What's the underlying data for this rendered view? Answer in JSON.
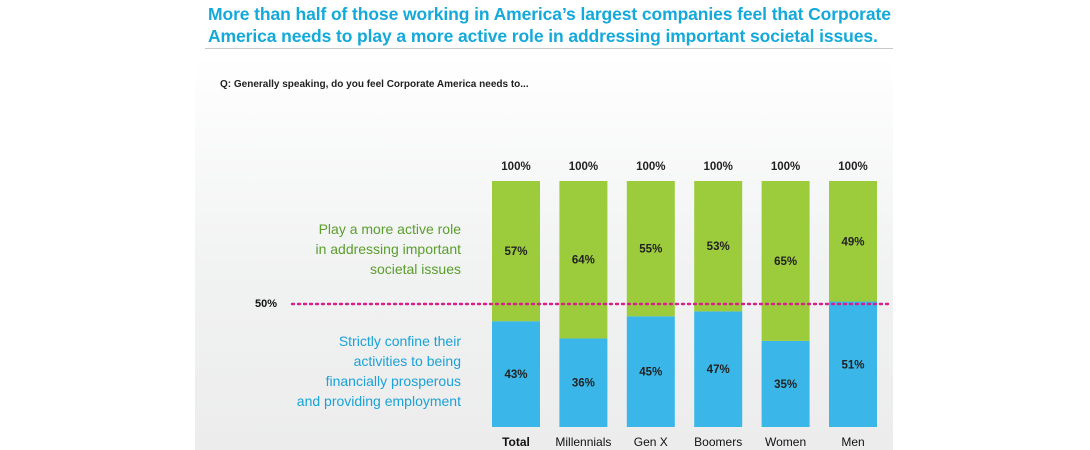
{
  "headline": {
    "line1": "More than half of those working in America’s largest companies feel that Corporate",
    "line2": "America needs to play a more active role in addressing important societal issues."
  },
  "question": "Q: Generally speaking, do you feel Corporate America needs to...",
  "reference_label": "50%",
  "legend": {
    "active": {
      "lines": [
        "Play a more active role",
        "in addressing important",
        "societal issues"
      ],
      "color": "#9ccb3c"
    },
    "confine": {
      "lines": [
        "Strictly confine their",
        "activities to being",
        "financially prosperous",
        "and providing employment"
      ],
      "color": "#3ab7e8"
    }
  },
  "chart_data": {
    "type": "bar",
    "stacked": true,
    "categories": [
      "Total",
      "Millennials",
      "Gen X",
      "Boomers",
      "Women",
      "Men"
    ],
    "total_labels": [
      "100%",
      "100%",
      "100%",
      "100%",
      "100%",
      "100%"
    ],
    "series": [
      {
        "key": "confine",
        "values": [
          43,
          36,
          45,
          47,
          35,
          51
        ],
        "labels": [
          "43%",
          "36%",
          "45%",
          "47%",
          "35%",
          "51%"
        ],
        "color": "#3ab7e8"
      },
      {
        "key": "active",
        "values": [
          57,
          64,
          55,
          53,
          65,
          49
        ],
        "labels": [
          "57%",
          "64%",
          "55%",
          "53%",
          "65%",
          "49%"
        ],
        "color": "#9ccb3c"
      }
    ],
    "ylim": [
      0,
      100
    ],
    "reference_line": {
      "value": 50,
      "color": "#d6218a"
    }
  }
}
